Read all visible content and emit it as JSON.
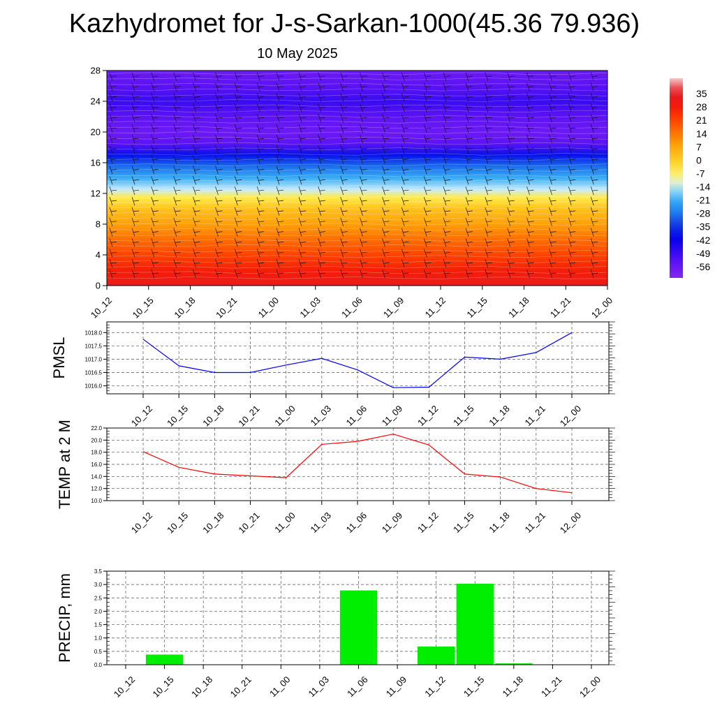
{
  "title": "Kazhydromet for J-s-Sarkan-1000(45.36 79.936)",
  "subtitle": "10 May 2025",
  "chart_data": [
    {
      "type": "heatmap",
      "x_categories": [
        "10_12",
        "10_15",
        "10_18",
        "10_21",
        "11_00",
        "11_03",
        "11_06",
        "11_09",
        "11_12",
        "11_15",
        "11_18",
        "11_21",
        "12_00"
      ],
      "y_ticks": [
        0,
        4,
        8,
        12,
        16,
        20,
        24,
        28
      ],
      "ylim": [
        0,
        28
      ],
      "colorbar": {
        "labels": [
          "35",
          "28",
          "21",
          "14",
          "7",
          "0",
          "-7",
          "-14",
          "-21",
          "-28",
          "-35",
          "-42",
          "-49",
          "-56"
        ],
        "range": [
          -63,
          42
        ]
      },
      "values_by_level": [
        {
          "level": 0,
          "value": 32
        },
        {
          "level": 2,
          "value": 26
        },
        {
          "level": 4,
          "value": 20
        },
        {
          "level": 6,
          "value": 14
        },
        {
          "level": 8,
          "value": 7
        },
        {
          "level": 10,
          "value": 1
        },
        {
          "level": 11.5,
          "value": -7
        },
        {
          "level": 12.5,
          "value": -15
        },
        {
          "level": 14,
          "value": -22
        },
        {
          "level": 15.5,
          "value": -30
        },
        {
          "level": 17,
          "value": -40
        },
        {
          "level": 18.5,
          "value": -55
        },
        {
          "level": 20,
          "value": -58
        },
        {
          "level": 22,
          "value": -55
        },
        {
          "level": 24,
          "value": -50
        },
        {
          "level": 26,
          "value": -55
        },
        {
          "level": 28,
          "value": -58
        }
      ],
      "colors": {
        "hot": "#ff2010",
        "orange": "#ff9a10",
        "yellow": "#fff27a",
        "cyan": "#30b0f0",
        "blue": "#1010f0",
        "violet": "#8028f0"
      }
    },
    {
      "type": "line",
      "ylabel": "PMSL",
      "categories": [
        "10_12",
        "10_15",
        "10_18",
        "10_21",
        "11_00",
        "11_03",
        "11_06",
        "11_09",
        "11_12",
        "11_15",
        "11_18",
        "11_21",
        "12_00"
      ],
      "values": [
        1017.75,
        1016.75,
        1016.5,
        1016.5,
        1016.78,
        1017.03,
        1016.6,
        1015.93,
        1015.95,
        1017.08,
        1017.0,
        1017.25,
        1018.0
      ],
      "y_ticks": [
        "1016.0",
        "1016.5",
        "1017.0",
        "1017.5",
        "1018.0"
      ],
      "ylim": [
        1015.7,
        1018.4
      ],
      "color": "#0000ff",
      "grid": true
    },
    {
      "type": "line",
      "ylabel": "TEMP at 2 M",
      "categories": [
        "10_12",
        "10_15",
        "10_18",
        "10_21",
        "11_00",
        "11_03",
        "11_06",
        "11_09",
        "11_12",
        "11_15",
        "11_18",
        "11_21",
        "12_00"
      ],
      "values": [
        18.1,
        15.5,
        14.4,
        14.1,
        13.8,
        19.3,
        19.8,
        21.0,
        19.2,
        14.4,
        13.9,
        12.0,
        11.3
      ],
      "y_ticks": [
        "10.0",
        "12.0",
        "14.0",
        "16.0",
        "18.0",
        "20.0",
        "22.0"
      ],
      "ylim": [
        10,
        22
      ],
      "color": "#ff0000",
      "grid": true
    },
    {
      "type": "bar",
      "ylabel": "PRECIP, mm",
      "categories": [
        "10_12",
        "10_15",
        "10_18",
        "10_21",
        "11_00",
        "11_03",
        "11_06",
        "11_09",
        "11_12",
        "11_15",
        "11_18",
        "11_21",
        "12_00"
      ],
      "values": [
        0,
        0.38,
        0,
        0,
        0,
        0,
        2.78,
        0,
        0.68,
        3.03,
        0.05,
        0,
        0
      ],
      "y_ticks": [
        "0.0",
        "0.5",
        "1.0",
        "1.5",
        "2.0",
        "2.5",
        "3.0",
        "3.5"
      ],
      "ylim": [
        0,
        3.5
      ],
      "color": "#00ee00",
      "grid": true
    }
  ]
}
